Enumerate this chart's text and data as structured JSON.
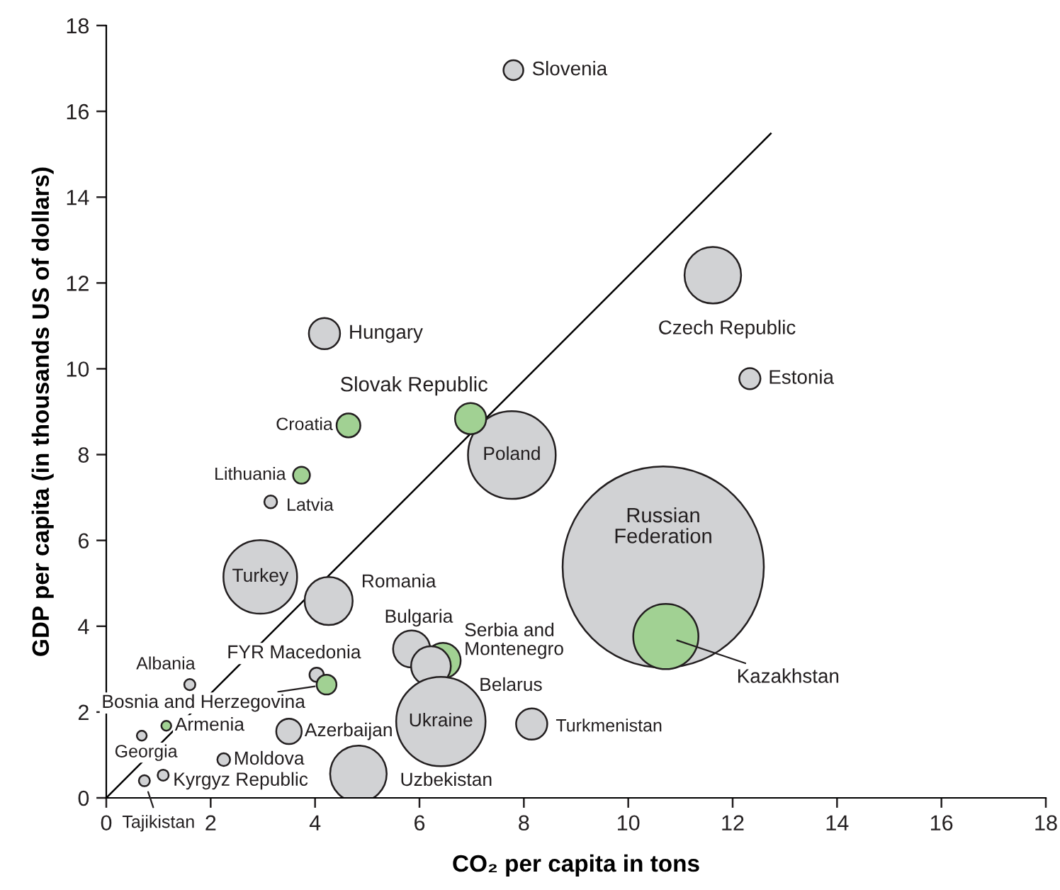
{
  "chart_data": {
    "type": "bubble",
    "xlabel": "CO₂ per capita in tons",
    "ylabel": "GDP per capita (in thousands US of dollars)",
    "xlim": [
      0,
      18
    ],
    "ylim": [
      0,
      18
    ],
    "xticks": [
      0,
      2,
      4,
      6,
      8,
      10,
      12,
      14,
      16,
      18
    ],
    "yticks": [
      0,
      2,
      4,
      6,
      8,
      10,
      12,
      14,
      16,
      18
    ],
    "grid": false,
    "series": [
      {
        "color": "#d1d2d4",
        "x": [
          7.8,
          4.18,
          11.62,
          12.33,
          7.77,
          3.15,
          2.95,
          4.26,
          10.67,
          5.85,
          6.22,
          4.03,
          1.6,
          0.68,
          3.5,
          6.41,
          8.15,
          2.25,
          1.09,
          0.73,
          4.83
        ],
        "values": [
          16.96,
          10.82,
          12.18,
          9.77,
          7.99,
          6.9,
          5.15,
          4.59,
          5.38,
          3.47,
          3.07,
          2.87,
          2.64,
          1.45,
          1.55,
          1.78,
          1.72,
          0.89,
          0.53,
          0.4,
          0.56
        ],
        "sizes": [
          0.0097,
          0.024,
          0.079,
          0.011,
          0.19,
          0.004,
          0.134,
          0.057,
          1,
          0.034,
          0.039,
          0.005,
          0.003,
          0.0024,
          0.016,
          0.197,
          0.024,
          0.004,
          0.003,
          0.003,
          0.079
        ]
      },
      {
        "color": "#a1d193",
        "x": [
          6.98,
          4.64,
          3.74,
          6.45,
          4.22,
          1.15,
          10.72
        ],
        "values": [
          8.84,
          8.68,
          7.52,
          3.2,
          2.64,
          1.68,
          3.76
        ],
        "sizes": [
          0.024,
          0.014,
          0.007,
          0.031,
          0.0097,
          0.0024,
          0.105
        ]
      },
      {
        "type": "line",
        "color": "#000000",
        "x": [
          0,
          12.73
        ],
        "values": [
          0,
          15.48
        ]
      }
    ],
    "annotations": [
      {
        "text": "Slovenia",
        "x": 7.8,
        "y": 16.96
      },
      {
        "text": "Hungary",
        "x": 4.18,
        "y": 10.82
      },
      {
        "text": "Czech Republic",
        "x": 11.62,
        "y": 12.18
      },
      {
        "text": "Estonia",
        "x": 12.33,
        "y": 9.77
      },
      {
        "text": "Poland",
        "x": 7.77,
        "y": 7.99
      },
      {
        "text": "Latvia",
        "x": 3.15,
        "y": 6.9
      },
      {
        "text": "Turkey",
        "x": 2.95,
        "y": 5.15
      },
      {
        "text": "Romania",
        "x": 4.26,
        "y": 4.59
      },
      {
        "text": "Russian\nFederation",
        "x": 10.67,
        "y": 5.38
      },
      {
        "text": "Bulgaria",
        "x": 5.85,
        "y": 3.47
      },
      {
        "text": "Belarus",
        "x": 6.22,
        "y": 3.07
      },
      {
        "text": "FYR Macedonia",
        "x": 4.03,
        "y": 2.87
      },
      {
        "text": "Albania",
        "x": 1.6,
        "y": 2.64
      },
      {
        "text": "Georgia",
        "x": 0.68,
        "y": 1.45
      },
      {
        "text": "Azerbaijan",
        "x": 3.5,
        "y": 1.55
      },
      {
        "text": "Ukraine",
        "x": 6.41,
        "y": 1.78
      },
      {
        "text": "Turkmenistan",
        "x": 8.15,
        "y": 1.72
      },
      {
        "text": "Moldova",
        "x": 2.25,
        "y": 0.89
      },
      {
        "text": "Kyrgyz Republic",
        "x": 1.09,
        "y": 0.53
      },
      {
        "text": "Tajikistan",
        "x": 0.73,
        "y": 0.4
      },
      {
        "text": "Uzbekistan",
        "x": 4.83,
        "y": 0.56
      },
      {
        "text": "Slovak Republic",
        "x": 6.98,
        "y": 8.84
      },
      {
        "text": "Croatia",
        "x": 4.64,
        "y": 8.68
      },
      {
        "text": "Lithuania",
        "x": 3.74,
        "y": 7.52
      },
      {
        "text": "Serbia and\nMontenegro",
        "x": 6.45,
        "y": 3.2
      },
      {
        "text": "Bosnia and Herzegovina",
        "x": 4.22,
        "y": 2.64
      },
      {
        "text": "Armenia",
        "x": 1.15,
        "y": 1.68
      },
      {
        "text": "Kazakhstan",
        "x": 10.72,
        "y": 3.76
      }
    ]
  }
}
